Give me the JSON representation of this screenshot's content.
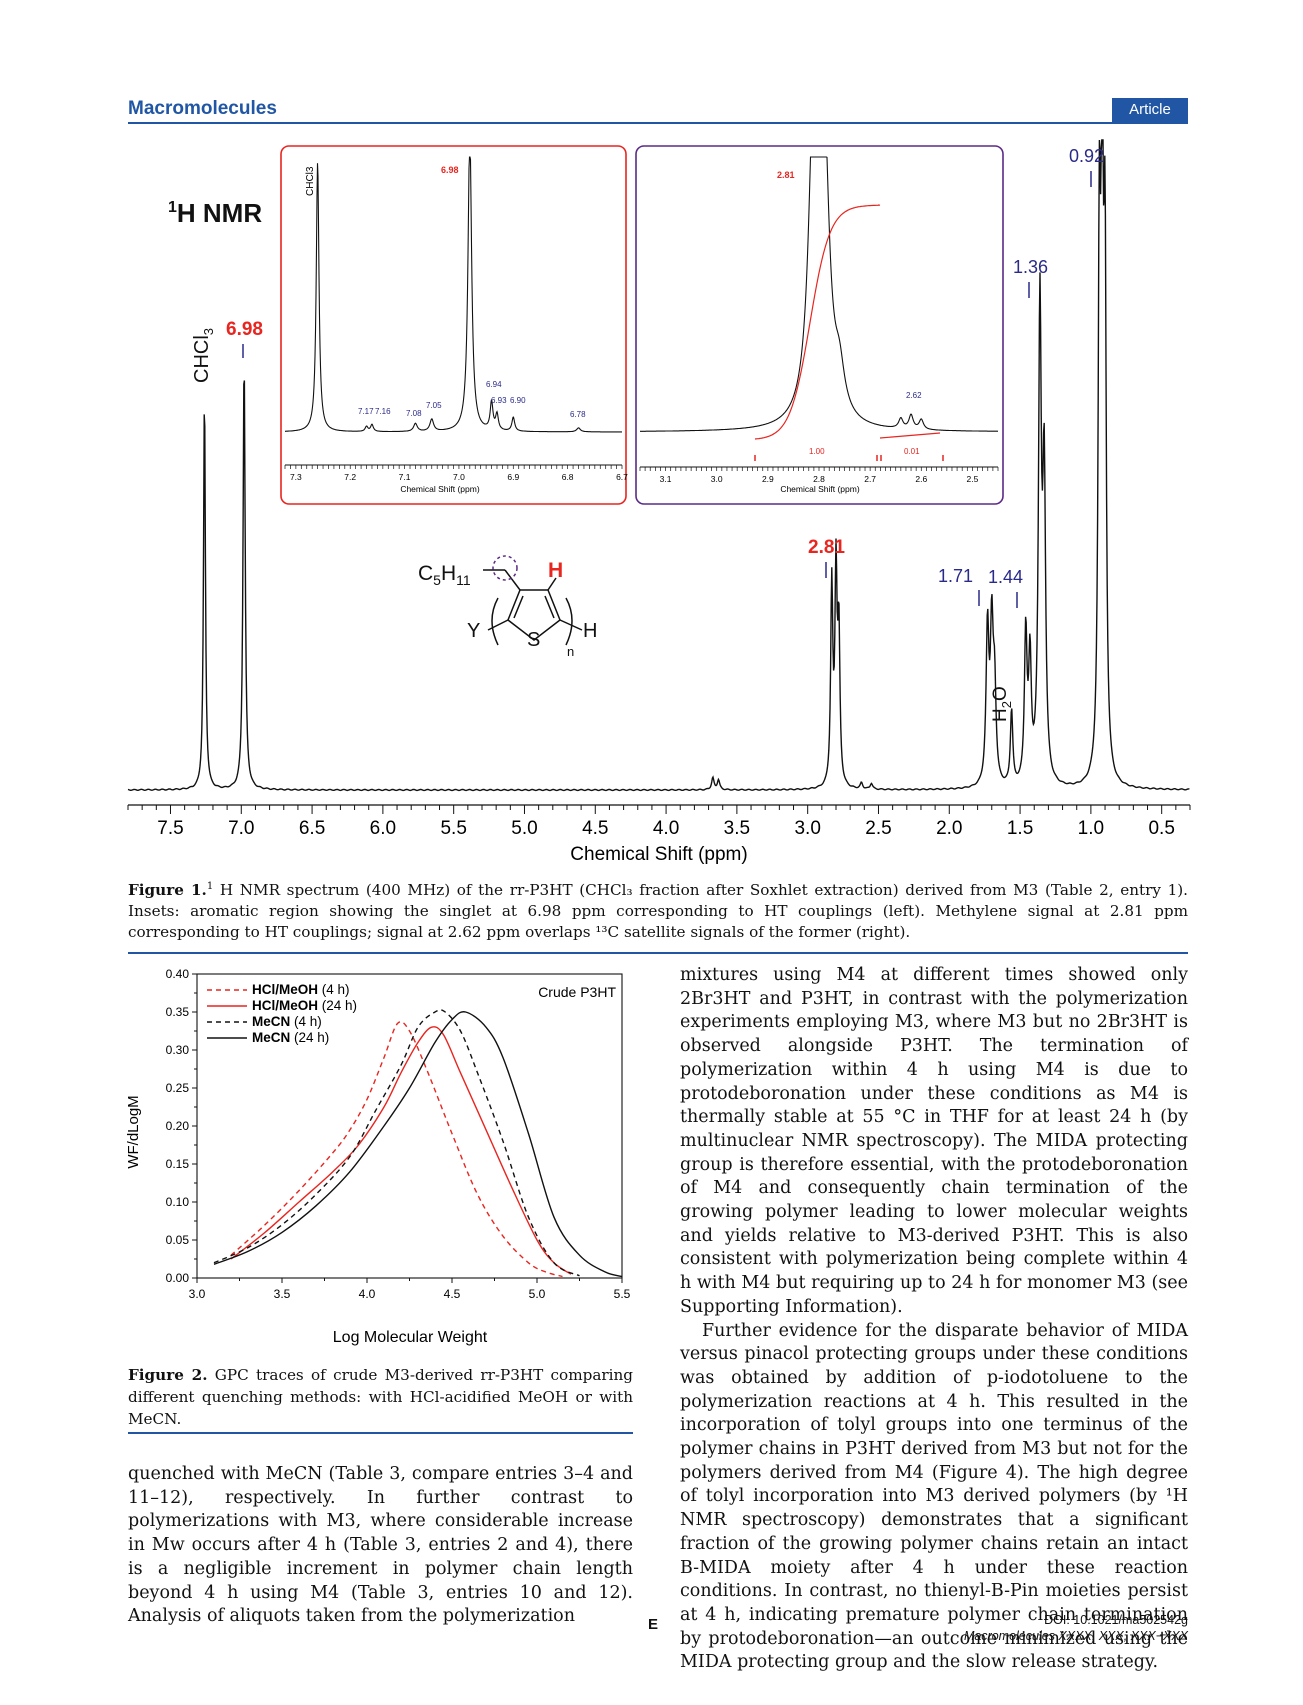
{
  "header": {
    "journal": "Macromolecules",
    "badge": "Article"
  },
  "figure1": {
    "title_main": "H NMR",
    "title_sup": "1",
    "peak_labels": {
      "chcl3": "CHCl3",
      "p698": "6.98",
      "p281": "2.81",
      "p171": "1.71",
      "p144": "1.44",
      "p136": "1.36",
      "p092": "0.92",
      "water": "H2O"
    },
    "chcl3_main": "CHCl",
    "chcl3_sub": "3",
    "water_main": "H",
    "water_sub": "2",
    "water_tail": "O",
    "xlabel": "Chemical Shift (ppm)",
    "ticks": [
      "7.5",
      "7.0",
      "6.5",
      "6.0",
      "5.5",
      "5.0",
      "4.5",
      "4.0",
      "3.5",
      "3.0",
      "2.5",
      "2.0",
      "1.5",
      "1.0",
      "0.5"
    ],
    "inset_left": {
      "ticks": [
        "7.3",
        "7.2",
        "7.1",
        "7.0",
        "6.9",
        "6.8",
        "6.7"
      ],
      "xlabel": "Chemical Shift (ppm)",
      "labels": [
        "CHCl3",
        "6.98",
        "7.17",
        "7.16",
        "7.08",
        "7.05",
        "6.94",
        "6.93",
        "6.90",
        "6.78"
      ]
    },
    "inset_right": {
      "ticks": [
        "3.1",
        "3.0",
        "2.9",
        "2.8",
        "2.7",
        "2.6",
        "2.5"
      ],
      "xlabel": "Chemical Shift (ppm)",
      "labels": [
        "2.81",
        "2.62"
      ],
      "integrals": [
        "1.00",
        "0.01"
      ]
    },
    "structure": {
      "c5": "C",
      "c5sub": "5",
      "h11": "H",
      "h11sub": "11",
      "h_red": "H",
      "y": "Y",
      "s": "S",
      "h_end": "H",
      "n": "n"
    },
    "caption_label": "Figure 1.",
    "caption_text": " H NMR spectrum (400 MHz) of the rr-P3HT (CHCl₃ fraction after Soxhlet extraction) derived from M3 (Table 2, entry 1). Insets: aromatic region showing the singlet at 6.98 ppm corresponding to HT couplings (left). Methylene signal at 2.81 ppm corresponding to HT couplings; signal at 2.62 ppm overlaps ¹³C satellite signals of the former (right)."
  },
  "figure2": {
    "ylabel": "WF/dLogM",
    "xlabel": "Log Molecular Weight",
    "annotation": "Crude P3HT",
    "yticks": [
      "0.00",
      "0.05",
      "0.10",
      "0.15",
      "0.20",
      "0.25",
      "0.30",
      "0.35",
      "0.40"
    ],
    "xticks": [
      "3.0",
      "3.5",
      "4.0",
      "4.5",
      "5.0",
      "5.5"
    ],
    "legend": [
      {
        "bold": "HCl/MeOH",
        "rest": " (4 h)"
      },
      {
        "bold": "HCl/MeOH",
        "rest": " (24 h)"
      },
      {
        "bold": "MeCN",
        "rest": " (4 h)"
      },
      {
        "bold": "MeCN",
        "rest": " (24 h)"
      }
    ],
    "caption_label": "Figure 2.",
    "caption_text": " GPC traces of crude M3-derived rr-P3HT comparing different quenching methods: with HCl-acidified MeOH or with MeCN."
  },
  "chart_data": [
    {
      "type": "line",
      "title": "",
      "xlabel": "Chemical Shift (ppm)",
      "ylabel": "",
      "xlim": [
        7.8,
        0.3
      ],
      "peaks_ppm": [
        7.26,
        6.98,
        2.81,
        1.71,
        1.56,
        1.44,
        1.36,
        0.92
      ],
      "peak_labels": [
        "CHCl3",
        "6.98",
        "2.81",
        "1.71",
        "H2O",
        "1.44",
        "1.36",
        "0.92"
      ]
    },
    {
      "type": "line",
      "title": "",
      "xlabel": "Log Molecular Weight",
      "ylabel": "WF/dLogM",
      "xlim": [
        3.0,
        5.5
      ],
      "ylim": [
        0.0,
        0.4
      ],
      "legend_position": "top-left",
      "series": [
        {
          "name": "HCl/MeOH (4 h)",
          "color": "#e8251f",
          "dash": true,
          "x": [
            3.2,
            3.4,
            3.6,
            3.8,
            3.9,
            4.0,
            4.1,
            4.18,
            4.25,
            4.35,
            4.5,
            4.65,
            4.8,
            4.95,
            5.05,
            5.15
          ],
          "y": [
            0.03,
            0.07,
            0.115,
            0.165,
            0.195,
            0.235,
            0.29,
            0.335,
            0.325,
            0.275,
            0.19,
            0.11,
            0.055,
            0.02,
            0.008,
            0.002
          ]
        },
        {
          "name": "HCl/MeOH (24 h)",
          "color": "#e8251f",
          "dash": false,
          "x": [
            3.2,
            3.4,
            3.6,
            3.8,
            3.95,
            4.1,
            4.2,
            4.3,
            4.38,
            4.45,
            4.55,
            4.7,
            4.85,
            5.0,
            5.1,
            5.2
          ],
          "y": [
            0.025,
            0.06,
            0.1,
            0.14,
            0.175,
            0.225,
            0.27,
            0.31,
            0.33,
            0.32,
            0.27,
            0.195,
            0.12,
            0.05,
            0.02,
            0.005
          ]
        },
        {
          "name": "MeCN (4 h)",
          "color": "#111111",
          "dash": true,
          "x": [
            3.1,
            3.3,
            3.5,
            3.7,
            3.9,
            4.05,
            4.2,
            4.3,
            4.4,
            4.46,
            4.55,
            4.65,
            4.8,
            4.95,
            5.1,
            5.25
          ],
          "y": [
            0.02,
            0.04,
            0.07,
            0.11,
            0.16,
            0.22,
            0.28,
            0.33,
            0.35,
            0.35,
            0.325,
            0.27,
            0.18,
            0.08,
            0.02,
            0.003
          ]
        },
        {
          "name": "MeCN (24 h)",
          "color": "#111111",
          "dash": false,
          "x": [
            3.1,
            3.3,
            3.5,
            3.7,
            3.9,
            4.1,
            4.25,
            4.4,
            4.5,
            4.58,
            4.7,
            4.8,
            4.95,
            5.1,
            5.25,
            5.4,
            5.5
          ],
          "y": [
            0.018,
            0.035,
            0.06,
            0.095,
            0.14,
            0.2,
            0.25,
            0.31,
            0.34,
            0.35,
            0.33,
            0.29,
            0.19,
            0.08,
            0.03,
            0.008,
            0.002
          ]
        }
      ]
    }
  ],
  "left_column_text": "quenched with MeCN (Table 3, compare entries 3–4 and 11–12), respectively. In further contrast to polymerizations with M3, where considerable increase in Mw occurs after 4 h (Table 3, entries 2 and 4), there is a negligible increment in polymer chain length beyond 4 h using M4 (Table 3, entries 10 and 12). Analysis of aliquots taken from the polymerization",
  "right_column_p1": "mixtures using M4 at different times showed only 2Br3HT and P3HT, in contrast with the polymerization experiments employing M3, where M3 but no 2Br3HT is observed alongside P3HT. The termination of polymerization within 4 h using M4 is due to protodeboronation under these conditions as M4 is thermally stable at 55 °C in THF for at least 24 h (by multinuclear NMR spectroscopy). The MIDA protecting group is therefore essential, with the protodeboronation of M4 and consequently chain termination of the growing polymer leading to lower molecular weights and yields relative to M3-derived P3HT. This is also consistent with polymerization being complete within 4 h with M4 but requiring up to 24 h for monomer M3 (see Supporting Information).",
  "right_column_p2": "Further evidence for the disparate behavior of MIDA versus pinacol protecting groups under these conditions was obtained by addition of p-iodotoluene to the polymerization reactions at 4 h. This resulted in the incorporation of tolyl groups into one terminus of the polymer chains in P3HT derived from M3 but not for the polymers derived from M4 (Figure 4). The high degree of tolyl incorporation into M3 derived polymers (by ¹H NMR spectroscopy) demonstrates that a significant fraction of the growing polymer chains retain an intact B-MIDA moiety after 4 h under these reaction conditions. In contrast, no thienyl-B-Pin moieties persist at 4 h, indicating premature polymer chain termination by protodeboronation—an outcome minimized using the MIDA protecting group and the slow release strategy.",
  "footer": {
    "page": "E",
    "doi": "DOI: 10.1021/ma502542g",
    "citation": "Macromolecules XXXX, XXX, XXX−XXX"
  }
}
